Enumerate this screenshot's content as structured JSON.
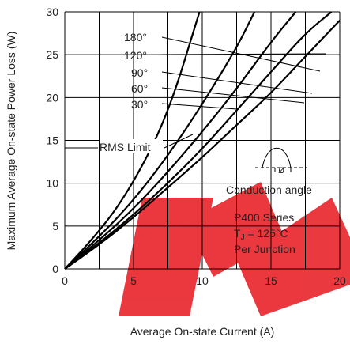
{
  "chart_data": {
    "type": "line",
    "xlabel": "Average On-state Current (A)",
    "ylabel": "Maximum Average On-state Power Loss (W)",
    "xlim": [
      0,
      20
    ],
    "ylim": [
      0,
      30
    ],
    "x_ticks": [
      "0",
      "5",
      "10",
      "15",
      "20"
    ],
    "y_ticks": [
      "0",
      "5",
      "10",
      "15",
      "20",
      "25",
      "30"
    ],
    "grid": true,
    "series": [
      {
        "name": "180°",
        "x": [
          0,
          2.5,
          5,
          7.5,
          10,
          12.5,
          15,
          17.5,
          20
        ],
        "y": [
          0,
          2.8,
          6.0,
          9.5,
          13.0,
          16.8,
          20.5,
          24.8,
          29.0
        ]
      },
      {
        "name": "120°",
        "x": [
          0,
          2.5,
          5,
          7.5,
          10,
          12.5,
          15,
          17.5,
          19.4
        ],
        "y": [
          0,
          3.0,
          6.3,
          10.0,
          14.0,
          18.5,
          23.0,
          27.5,
          30.0
        ]
      },
      {
        "name": "90°",
        "x": [
          0,
          2.5,
          5,
          7.5,
          10,
          12.5,
          15,
          16.8
        ],
        "y": [
          0,
          3.3,
          7.0,
          11.3,
          16.0,
          21.0,
          26.5,
          30.0
        ]
      },
      {
        "name": "60°",
        "x": [
          0,
          2.5,
          5,
          7.5,
          10,
          12.5,
          13.8
        ],
        "y": [
          0,
          3.7,
          8.0,
          13.2,
          19.2,
          25.8,
          30.0
        ]
      },
      {
        "name": "30°",
        "x": [
          0,
          2.5,
          5,
          7.5,
          9.8
        ],
        "y": [
          0,
          4.2,
          10.0,
          18.0,
          30.0
        ]
      }
    ],
    "annotations": {
      "angles": [
        "180°",
        "120°",
        "90°",
        "60°",
        "30°"
      ],
      "rms_limit": "RMS Limit",
      "conduction_angle": "Conduction angle",
      "phi": "ø",
      "series_name": "P400 Series",
      "tj_line": "T",
      "tj_sub": "J",
      "tj_rest": " = 125°C",
      "per_junction": "Per Junction"
    },
    "watermark_color": "#e8232a"
  }
}
